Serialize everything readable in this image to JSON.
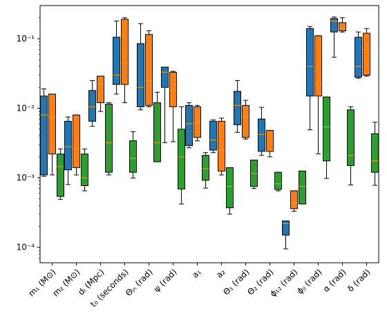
{
  "chart_data": {
    "type": "boxplot",
    "yscale": "log",
    "ylim": [
      6e-05,
      0.3
    ],
    "yticks": [
      {
        "value": 0.0001,
        "label": "10⁻⁴"
      },
      {
        "value": 0.001,
        "label": "10⁻³"
      },
      {
        "value": 0.01,
        "label": "10⁻²"
      },
      {
        "value": 0.1,
        "label": "10⁻¹"
      }
    ],
    "categories": [
      "m₁ (M⊙)",
      "m₂ (M⊙)",
      "dₗ (Mpc)",
      "t₀ (seconds)",
      "Θⱼₙ (rad)",
      "ψ (rad)",
      "a₁",
      "a₂",
      "Θ₁ (rad)",
      "Θ₂ (rad)",
      "ϕ₁₂ (rad)",
      "ϕⱼₗ (rad)",
      "α (rad)",
      "δ (rad)"
    ],
    "series": [
      {
        "color": "#1f77b4",
        "boxes": [
          {
            "lo": 0.00105,
            "q1": 0.0011,
            "med": 0.008,
            "q3": 0.015,
            "hi": 0.019
          },
          {
            "lo": 0.0008,
            "q1": 0.0013,
            "med": 0.0028,
            "q3": 0.0065,
            "hi": 0.0075
          },
          {
            "lo": 0.0055,
            "q1": 0.0065,
            "med": 0.0105,
            "q3": 0.018,
            "hi": 0.025
          },
          {
            "lo": 0.016,
            "q1": 0.022,
            "med": 0.03,
            "q3": 0.105,
            "hi": 0.18
          },
          {
            "lo": 0.0095,
            "q1": 0.0105,
            "med": 0.02,
            "q3": 0.085,
            "hi": 0.165
          },
          {
            "lo": 0.0032,
            "q1": 0.02,
            "med": 0.033,
            "q3": 0.039,
            "hi": 0.039
          },
          {
            "lo": 0.0027,
            "q1": 0.0029,
            "med": 0.006,
            "q3": 0.011,
            "hi": 0.012
          },
          {
            "lo": 0.0023,
            "q1": 0.0025,
            "med": 0.0035,
            "q3": 0.0065,
            "hi": 0.0068
          },
          {
            "lo": 0.0045,
            "q1": 0.0058,
            "med": 0.011,
            "q3": 0.0175,
            "hi": 0.025
          },
          {
            "lo": 0.0021,
            "q1": 0.0024,
            "med": 0.0042,
            "q3": 0.007,
            "hi": 0.0103
          },
          {
            "lo": 9.5e-05,
            "q1": 0.00015,
            "med": 0.00022,
            "q3": 0.00024,
            "hi": 0.00024
          },
          {
            "lo": 0.0049,
            "q1": 0.015,
            "med": 0.04,
            "q3": 0.14,
            "hi": 0.15
          },
          {
            "lo": 0.054,
            "q1": 0.125,
            "med": 0.18,
            "q3": 0.195,
            "hi": 0.205
          },
          {
            "lo": 0.027,
            "q1": 0.028,
            "med": 0.04,
            "q3": 0.105,
            "hi": 0.125
          }
        ]
      },
      {
        "color": "#ff7f0e",
        "boxes": [
          {
            "lo": 0.0011,
            "q1": 0.0022,
            "med": 0.0075,
            "q3": 0.016,
            "hi": 0.016
          },
          {
            "lo": 0.0011,
            "q1": 0.0014,
            "med": 0.0026,
            "q3": 0.008,
            "hi": 0.008
          },
          {
            "lo": 0.009,
            "q1": 0.012,
            "med": 0.022,
            "q3": 0.029,
            "hi": 0.029
          },
          {
            "lo": 0.012,
            "q1": 0.022,
            "med": 0.045,
            "q3": 0.19,
            "hi": 0.2
          },
          {
            "lo": 0.0105,
            "q1": 0.011,
            "med": 0.025,
            "q3": 0.115,
            "hi": 0.13
          },
          {
            "lo": 0.0033,
            "q1": 0.0105,
            "med": 0.018,
            "q3": 0.033,
            "hi": 0.034
          },
          {
            "lo": 0.0034,
            "q1": 0.0038,
            "med": 0.0062,
            "q3": 0.0105,
            "hi": 0.011
          },
          {
            "lo": 0.0011,
            "q1": 0.00125,
            "med": 0.0025,
            "q3": 0.0065,
            "hi": 0.0072
          },
          {
            "lo": 0.0036,
            "q1": 0.0038,
            "med": 0.0075,
            "q3": 0.011,
            "hi": 0.013
          },
          {
            "lo": 0.002,
            "q1": 0.0024,
            "med": 0.0025,
            "q3": 0.0048,
            "hi": 0.0048
          },
          {
            "lo": 0.00033,
            "q1": 0.00036,
            "med": 0.00043,
            "q3": 0.00065,
            "hi": 0.00065
          },
          {
            "lo": 0.0022,
            "q1": 0.015,
            "med": 0.022,
            "q3": 0.11,
            "hi": 0.11
          },
          {
            "lo": 0.125,
            "q1": 0.13,
            "med": 0.14,
            "q3": 0.17,
            "hi": 0.2
          },
          {
            "lo": 0.029,
            "q1": 0.03,
            "med": 0.07,
            "q3": 0.12,
            "hi": 0.14
          }
        ]
      },
      {
        "color": "#2ca02c",
        "boxes": [
          {
            "lo": 0.00049,
            "q1": 0.00054,
            "med": 0.00145,
            "q3": 0.0022,
            "hi": 0.0026
          },
          {
            "lo": 0.00065,
            "q1": 0.00077,
            "med": 0.001,
            "q3": 0.0022,
            "hi": 0.0026
          },
          {
            "lo": 0.0011,
            "q1": 0.0012,
            "med": 0.0032,
            "q3": 0.0115,
            "hi": 0.012
          },
          {
            "lo": 0.00099,
            "q1": 0.0012,
            "med": 0.0019,
            "q3": 0.0034,
            "hi": 0.0046
          },
          {
            "lo": 0.0017,
            "q1": 0.0017,
            "med": 0.0032,
            "q3": 0.012,
            "hi": 0.017
          },
          {
            "lo": 0.00042,
            "q1": 0.00069,
            "med": 0.002,
            "q3": 0.005,
            "hi": 0.0105
          },
          {
            "lo": 0.00071,
            "q1": 0.00092,
            "med": 0.00135,
            "q3": 0.0021,
            "hi": 0.0023
          },
          {
            "lo": 0.0003,
            "q1": 0.00037,
            "med": 0.00075,
            "q3": 0.0014,
            "hi": 0.0014
          },
          {
            "lo": 0.0007,
            "q1": 0.00075,
            "med": 0.00115,
            "q3": 0.0018,
            "hi": 0.0018
          },
          {
            "lo": 0.00065,
            "q1": 0.00068,
            "med": 0.00082,
            "q3": 0.0012,
            "hi": 0.0012
          },
          {
            "lo": 0.00042,
            "q1": 0.00042,
            "med": 0.00075,
            "q3": 0.00125,
            "hi": 0.00125
          },
          {
            "lo": 0.00098,
            "q1": 0.00175,
            "med": 0.0054,
            "q3": 0.0145,
            "hi": 0.0145
          },
          {
            "lo": 0.00079,
            "q1": 0.0015,
            "med": 0.0021,
            "q3": 0.0095,
            "hi": 0.0105
          },
          {
            "lo": 0.00078,
            "q1": 0.0012,
            "med": 0.00175,
            "q3": 0.0043,
            "hi": 0.0063
          }
        ]
      }
    ],
    "median_color": "#ffa500",
    "grid": false,
    "legend": "none",
    "title": "",
    "xlabel": "",
    "ylabel": ""
  }
}
